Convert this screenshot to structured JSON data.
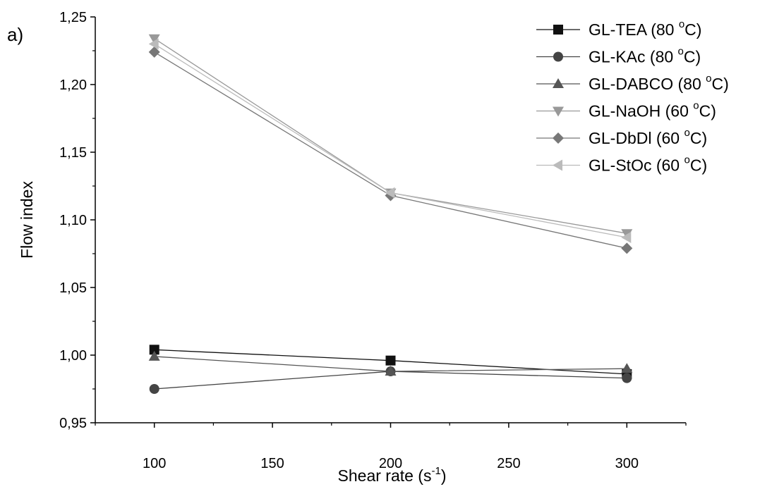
{
  "chart_data": {
    "type": "line",
    "panel_label": "a)",
    "xlabel": "Shear rate (s",
    "xlabel_sup": "-1",
    "xlabel_end": ")",
    "ylabel": "Flow index",
    "x": [
      100,
      200,
      300
    ],
    "xlim": [
      75,
      325
    ],
    "ylim": [
      0.95,
      1.25
    ],
    "xticks": [
      100,
      150,
      200,
      250,
      300
    ],
    "xtick_labels": [
      "100",
      "150",
      "200",
      "250",
      "300"
    ],
    "yticks": [
      0.95,
      1.0,
      1.05,
      1.1,
      1.15,
      1.2,
      1.25
    ],
    "ytick_labels": [
      "0,95",
      "1,00",
      "1,05",
      "1,10",
      "1,15",
      "1,20",
      "1,25"
    ],
    "grid": false,
    "legend_position": "top-right",
    "series": [
      {
        "name": "GL-TEA (80",
        "temp_sup": "o",
        "name_end": "C)",
        "marker": "square",
        "color": "#111111",
        "values": [
          1.004,
          0.996,
          0.986
        ]
      },
      {
        "name": "GL-KAc (80",
        "temp_sup": "o",
        "name_end": "C)",
        "marker": "circle",
        "color": "#444444",
        "values": [
          0.975,
          0.988,
          0.983
        ]
      },
      {
        "name": "GL-DABCO (80",
        "temp_sup": "o",
        "name_end": "C)",
        "marker": "triangle-up",
        "color": "#555555",
        "values": [
          0.999,
          0.988,
          0.99
        ]
      },
      {
        "name": "GL-NaOH (60",
        "temp_sup": "o",
        "name_end": "C)",
        "marker": "triangle-down",
        "color": "#999999",
        "values": [
          1.234,
          1.12,
          1.09
        ]
      },
      {
        "name": "GL-DbDl (60",
        "temp_sup": "o",
        "name_end": "C)",
        "marker": "diamond",
        "color": "#777777",
        "values": [
          1.224,
          1.118,
          1.079
        ]
      },
      {
        "name": "GL-StOc (60",
        "temp_sup": "o",
        "name_end": "C)",
        "marker": "triangle-left",
        "color": "#bbbbbb",
        "values": [
          1.23,
          1.12,
          1.087
        ]
      }
    ]
  }
}
